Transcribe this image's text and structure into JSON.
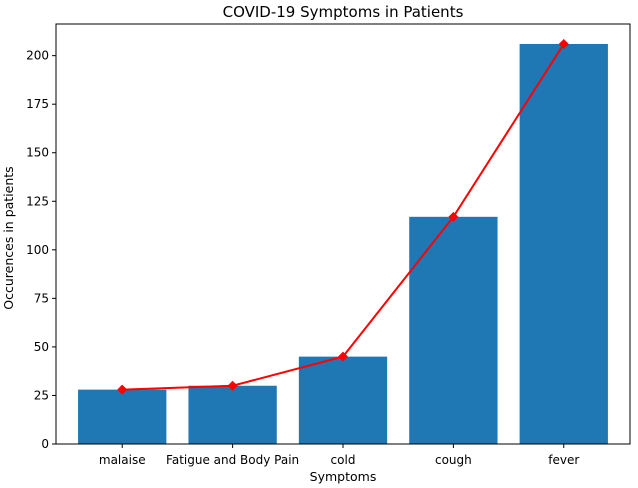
{
  "chart_data": {
    "type": "bar",
    "title": "COVID-19 Symptoms in Patients",
    "xlabel": "Symptoms",
    "ylabel": "Occurences in patients",
    "categories": [
      "malaise",
      "Fatigue and Body Pain",
      "cold",
      "cough",
      "fever"
    ],
    "values": [
      28,
      30,
      45,
      117,
      206
    ],
    "line_overlay": {
      "values": [
        28,
        30,
        45,
        117,
        206
      ],
      "marker": "diamond",
      "color": "#ff0000"
    },
    "yticks": [
      0,
      25,
      50,
      75,
      100,
      125,
      150,
      175,
      200
    ],
    "ylim": [
      0,
      216.3
    ],
    "grid": false,
    "bar_color": "#1f77b4"
  }
}
